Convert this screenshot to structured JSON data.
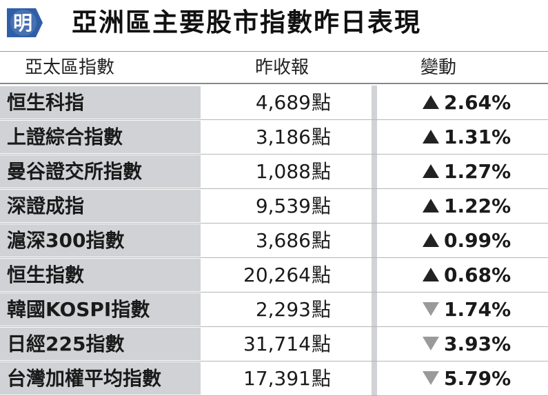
{
  "header": {
    "logo_char": "明",
    "title": "亞洲區主要股市指數昨日表現"
  },
  "columns": {
    "name": "亞太區指數",
    "close": "昨收報",
    "change": "變動"
  },
  "colors": {
    "logo_blue": "#2f5ea8",
    "row_shade": "#d0d2d5",
    "up_arrow": "#222222",
    "down_arrow": "#9a9a9a"
  },
  "rows": [
    {
      "name": "恒生科指",
      "close": "4,689",
      "unit": "點",
      "change": "2.64%",
      "direction": "up"
    },
    {
      "name": "上證綜合指數",
      "close": "3,186",
      "unit": "點",
      "change": "1.31%",
      "direction": "up"
    },
    {
      "name": "曼谷證交所指數",
      "close": "1,088",
      "unit": "點",
      "change": "1.27%",
      "direction": "up"
    },
    {
      "name": "深證成指",
      "close": "9,539",
      "unit": "點",
      "change": "1.22%",
      "direction": "up"
    },
    {
      "name": "滬深300指數",
      "close": "3,686",
      "unit": "點",
      "change": "0.99%",
      "direction": "up"
    },
    {
      "name": "恒生指數",
      "close": "20,264",
      "unit": "點",
      "change": "0.68%",
      "direction": "up"
    },
    {
      "name": "韓國KOSPI指數",
      "close": "2,293",
      "unit": "點",
      "change": "1.74%",
      "direction": "down"
    },
    {
      "name": "日經225指數",
      "close": "31,714",
      "unit": "點",
      "change": "3.93%",
      "direction": "down"
    },
    {
      "name": "台灣加權平均指數",
      "close": "17,391",
      "unit": "點",
      "change": "5.79%",
      "direction": "down"
    }
  ]
}
